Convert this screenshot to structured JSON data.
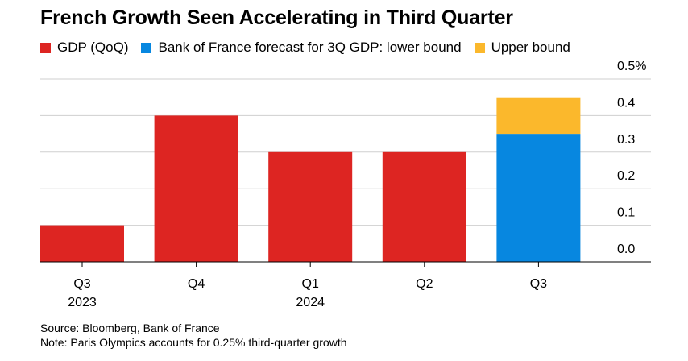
{
  "title": "French Growth Seen Accelerating in Third Quarter",
  "legend": [
    {
      "label": "GDP (QoQ)",
      "color": "#dd2522"
    },
    {
      "label": "Bank of France forecast for 3Q GDP: lower bound",
      "color": "#0787e0"
    },
    {
      "label": "Upper bound",
      "color": "#fbb82c"
    }
  ],
  "chart_data": {
    "type": "bar",
    "stacked": true,
    "categories": [
      "Q3",
      "Q4",
      "Q1",
      "Q2",
      "Q3"
    ],
    "category_years": [
      "2023",
      "",
      "2024",
      "",
      ""
    ],
    "series": [
      {
        "name": "GDP (QoQ)",
        "color": "#dd2522",
        "values": [
          0.1,
          0.4,
          0.3,
          0.3,
          0
        ]
      },
      {
        "name": "Bank of France forecast for 3Q GDP: lower bound",
        "color": "#0787e0",
        "values": [
          0,
          0,
          0,
          0,
          0.35
        ]
      },
      {
        "name": "Upper bound",
        "color": "#fbb82c",
        "values": [
          0,
          0,
          0,
          0,
          0.1
        ]
      }
    ],
    "ylim": [
      0,
      0.5
    ],
    "yticks": [
      0.0,
      0.1,
      0.2,
      0.3,
      0.4,
      0.5
    ],
    "ytick_labels": [
      "0.0",
      "0.1",
      "0.2",
      "0.3",
      "0.4",
      "0.5%"
    ],
    "y_axis_position": "right",
    "grid": true,
    "legend_position": "top-left"
  },
  "footer": {
    "source": "Source: Bloomberg, Bank of France",
    "note": "Note: Paris Olympics accounts for 0.25% third-quarter growth"
  }
}
